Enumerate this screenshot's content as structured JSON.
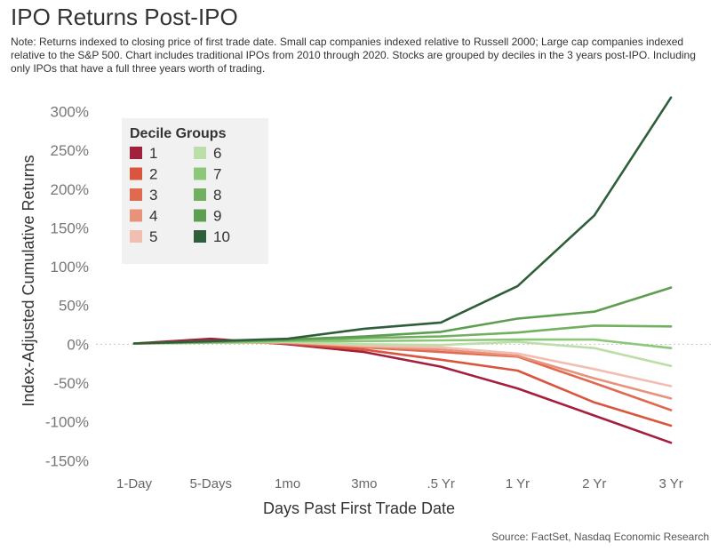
{
  "header": {
    "title": "IPO Returns Post-IPO",
    "note": "Note: Returns indexed to closing price of first trade date. Small cap companies indexed relative to Russell 2000; Large cap companies indexed relative to the S&P 500. Chart includes traditional IPOs from 2010 through 2020. Stocks are grouped by deciles in the 3 years post-IPO. Including only IPOs that have a full three years worth of trading."
  },
  "footer": {
    "source": "Source: FactSet, Nasdaq Economic Research"
  },
  "chart_data": {
    "type": "line",
    "title": "IPO Returns Post-IPO",
    "xlabel": "Days Past First Trade Date",
    "ylabel": "Index-Adjusted Cumulative Returns",
    "categories": [
      "1-Day",
      "5-Days",
      "1mo",
      "3mo",
      ".5 Yr",
      "1 Yr",
      "2 Yr",
      "3 Yr"
    ],
    "ylim": [
      -160,
      320
    ],
    "yticks": [
      -150,
      -100,
      -50,
      0,
      50,
      100,
      150,
      200,
      250,
      300
    ],
    "ytick_labels": [
      "-150%",
      "-100%",
      "-50%",
      "0%",
      "50%",
      "100%",
      "150%",
      "200%",
      "250%",
      "300%"
    ],
    "grid": false,
    "zero_line": true,
    "legend": {
      "title": "Decile Groups",
      "position": "top-left"
    },
    "series": [
      {
        "name": "1",
        "color": "#a3203d",
        "values": [
          1,
          7,
          0,
          -10,
          -29,
          -57,
          -92,
          -127
        ]
      },
      {
        "name": "2",
        "color": "#d9553d",
        "values": [
          1,
          4,
          1,
          -7,
          -20,
          -34,
          -75,
          -105
        ]
      },
      {
        "name": "3",
        "color": "#e06a50",
        "values": [
          1,
          3,
          2,
          -4,
          -10,
          -16,
          -50,
          -85
        ]
      },
      {
        "name": "4",
        "color": "#e8927b",
        "values": [
          1,
          2,
          2,
          -3,
          -7,
          -15,
          -44,
          -70
        ]
      },
      {
        "name": "5",
        "color": "#f2beb2",
        "values": [
          1,
          2,
          3,
          -2,
          -4,
          -12,
          -32,
          -54
        ]
      },
      {
        "name": "6",
        "color": "#bcdfaa",
        "values": [
          1,
          2,
          3,
          0,
          -1,
          3,
          -5,
          -28
        ]
      },
      {
        "name": "7",
        "color": "#8dc87a",
        "values": [
          1,
          2,
          4,
          4,
          5,
          6,
          6,
          -5
        ]
      },
      {
        "name": "8",
        "color": "#72b060",
        "values": [
          1,
          3,
          5,
          8,
          10,
          15,
          24,
          23
        ]
      },
      {
        "name": "9",
        "color": "#5e9e51",
        "values": [
          1,
          3,
          6,
          10,
          16,
          33,
          42,
          73
        ]
      },
      {
        "name": "10",
        "color": "#2f5f3a",
        "values": [
          1,
          4,
          7,
          20,
          28,
          75,
          166,
          318
        ]
      }
    ]
  }
}
